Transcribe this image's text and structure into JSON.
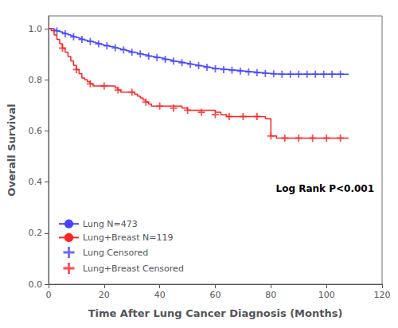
{
  "chart_data": {
    "type": "line",
    "xlabel": "Time After Lung Cancer Diagnosis (Months)",
    "ylabel": "Overall Survival",
    "xlim": [
      0,
      120
    ],
    "ylim": [
      0.0,
      1.05
    ],
    "xticks": [
      0,
      20,
      40,
      60,
      80,
      100,
      120
    ],
    "yticks": [
      {
        "value": 0.0,
        "label": "0.0"
      },
      0.2,
      0.4,
      0.6,
      0.8,
      {
        "value": 1.0,
        "label": "1.0"
      }
    ],
    "grid": false,
    "legend": "lower left",
    "annotation": "Log Rank P<0.001",
    "series": [
      {
        "name": "Lung N=473",
        "type": "step",
        "color": "#4444FF",
        "x": [
          0,
          1,
          2,
          3,
          4,
          5,
          6,
          7,
          8,
          9,
          10,
          11,
          12,
          13,
          14,
          15,
          16,
          17,
          18,
          19,
          20,
          21,
          22,
          23,
          24,
          25,
          26,
          27,
          28,
          29,
          30,
          31,
          32,
          33,
          34,
          35,
          36,
          37,
          38,
          39,
          40,
          41,
          42,
          43,
          44,
          45,
          46,
          47,
          48,
          49,
          50,
          51,
          52,
          53,
          54,
          55,
          56,
          57,
          58,
          59,
          60,
          62,
          64,
          66,
          68,
          70,
          72,
          74,
          76,
          78,
          80,
          82,
          84,
          86,
          88,
          90,
          92,
          94,
          96,
          98,
          100,
          102,
          104,
          106,
          108
        ],
        "values": [
          1.0,
          1.0,
          0.995,
          0.991,
          0.988,
          0.984,
          0.98,
          0.976,
          0.972,
          0.968,
          0.965,
          0.962,
          0.958,
          0.955,
          0.952,
          0.95,
          0.947,
          0.944,
          0.941,
          0.938,
          0.935,
          0.933,
          0.93,
          0.928,
          0.925,
          0.922,
          0.919,
          0.917,
          0.914,
          0.911,
          0.908,
          0.906,
          0.903,
          0.901,
          0.898,
          0.896,
          0.893,
          0.891,
          0.889,
          0.887,
          0.885,
          0.883,
          0.88,
          0.878,
          0.876,
          0.873,
          0.871,
          0.869,
          0.867,
          0.865,
          0.863,
          0.861,
          0.859,
          0.857,
          0.855,
          0.853,
          0.851,
          0.849,
          0.847,
          0.845,
          0.843,
          0.841,
          0.839,
          0.837,
          0.835,
          0.833,
          0.831,
          0.829,
          0.827,
          0.825,
          0.823,
          0.822,
          0.822,
          0.822,
          0.822,
          0.822,
          0.822,
          0.822,
          0.822,
          0.822,
          0.822,
          0.822,
          0.822,
          0.822,
          0.822
        ]
      },
      {
        "name": "Lung+Breast N=119",
        "type": "step",
        "color": "#FF2222",
        "x": [
          0,
          1,
          2,
          3,
          4,
          5,
          6,
          7,
          8,
          9,
          10,
          11,
          12,
          13,
          14,
          15,
          16,
          17,
          18,
          19,
          20,
          21,
          22,
          23,
          24,
          25,
          26,
          27,
          28,
          29,
          30,
          31,
          32,
          33,
          34,
          35,
          36,
          37,
          38,
          39,
          40,
          42,
          44,
          46,
          48,
          50,
          52,
          54,
          56,
          58,
          60,
          62,
          64,
          66,
          68,
          70,
          72,
          74,
          76,
          78,
          80,
          82,
          84,
          86,
          88,
          90,
          92,
          94,
          96,
          98,
          100,
          102,
          104,
          106,
          108
        ],
        "values": [
          1.0,
          0.992,
          0.975,
          0.958,
          0.941,
          0.924,
          0.908,
          0.891,
          0.874,
          0.857,
          0.84,
          0.824,
          0.807,
          0.8,
          0.792,
          0.784,
          0.776,
          0.776,
          0.776,
          0.776,
          0.776,
          0.776,
          0.776,
          0.776,
          0.768,
          0.76,
          0.752,
          0.752,
          0.752,
          0.752,
          0.752,
          0.744,
          0.736,
          0.729,
          0.721,
          0.713,
          0.705,
          0.697,
          0.697,
          0.697,
          0.697,
          0.697,
          0.697,
          0.697,
          0.689,
          0.681,
          0.681,
          0.681,
          0.681,
          0.681,
          0.673,
          0.664,
          0.656,
          0.656,
          0.656,
          0.656,
          0.656,
          0.656,
          0.656,
          0.648,
          0.58,
          0.572,
          0.572,
          0.572,
          0.572,
          0.572,
          0.572,
          0.572,
          0.572,
          0.572,
          0.572,
          0.572,
          0.572,
          0.572,
          0.572
        ]
      },
      {
        "name": "Lung Censored",
        "type": "scatter",
        "marker": "plus",
        "color": "#4444FF",
        "x": [
          3,
          6,
          9,
          12,
          15,
          18,
          21,
          24,
          27,
          30,
          33,
          36,
          39,
          42,
          45,
          48,
          51,
          54,
          57,
          60,
          63,
          66,
          69,
          72,
          75,
          78,
          81,
          84,
          87,
          90,
          93,
          96,
          99,
          102,
          105
        ],
        "values": [
          0.991,
          0.98,
          0.968,
          0.958,
          0.95,
          0.941,
          0.933,
          0.925,
          0.917,
          0.908,
          0.901,
          0.893,
          0.887,
          0.88,
          0.873,
          0.867,
          0.861,
          0.855,
          0.849,
          0.843,
          0.84,
          0.837,
          0.834,
          0.831,
          0.828,
          0.825,
          0.823,
          0.822,
          0.822,
          0.822,
          0.822,
          0.822,
          0.822,
          0.822,
          0.822
        ]
      },
      {
        "name": "Lung+Breast Censored",
        "type": "scatter",
        "marker": "plus",
        "color": "#FF2222",
        "x": [
          5,
          10,
          15,
          20,
          25,
          30,
          35,
          40,
          45,
          50,
          55,
          60,
          65,
          70,
          75,
          80,
          85,
          90,
          95,
          100,
          105
        ],
        "values": [
          0.924,
          0.84,
          0.784,
          0.776,
          0.76,
          0.752,
          0.713,
          0.697,
          0.689,
          0.681,
          0.673,
          0.664,
          0.656,
          0.656,
          0.656,
          0.58,
          0.572,
          0.572,
          0.572,
          0.572,
          0.572
        ]
      }
    ]
  }
}
